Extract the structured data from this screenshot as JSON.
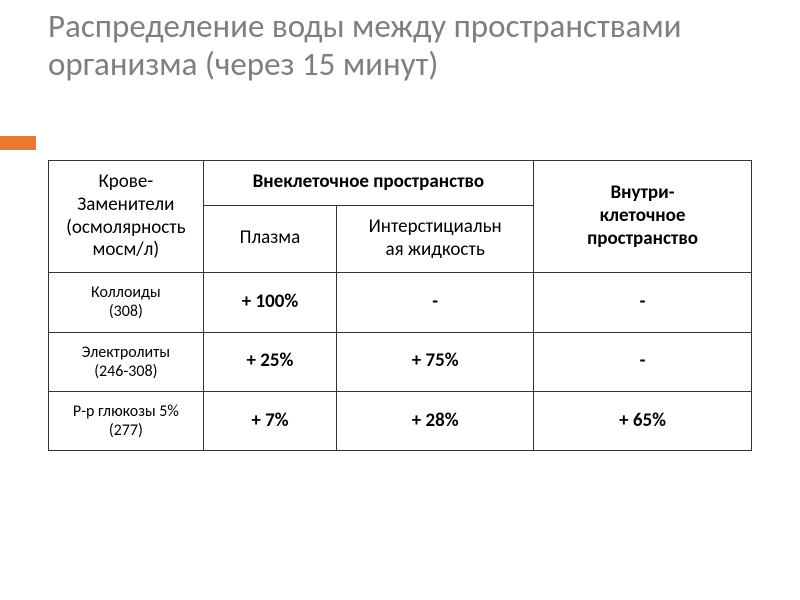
{
  "title": {
    "text": "Распределение воды между пространствами\nорганизма (через 15 минут)",
    "color": "#7f7f7f",
    "fontsize": 33
  },
  "accent": {
    "color": "#e8792f"
  },
  "table": {
    "type": "table",
    "border_color": "#333333",
    "background_color": "#ffffff",
    "header_fontsize": 19,
    "body_fontsize": 19,
    "row_label_fontsize": 16,
    "columns": [
      {
        "key": "substitute",
        "width_pct": 22
      },
      {
        "key": "plasma",
        "width_pct": 19
      },
      {
        "key": "interstitial",
        "width_pct": 28
      },
      {
        "key": "intracellular",
        "width_pct": 31
      }
    ],
    "headers": {
      "substitute": "Крове-\nЗаменители\n(осмолярность\nмосм/л)",
      "extracellular_group": "Внеклеточное  пространство",
      "plasma": "Плазма",
      "interstitial": "Интерстициальн\nая жидкость",
      "intracellular": "Внутри-\nклеточное\nпространство"
    },
    "rows": [
      {
        "label": "Коллоиды\n(308)",
        "plasma": "+ 100%",
        "interstitial": "-",
        "intracellular": "-"
      },
      {
        "label": "Электролиты\n(246-308)",
        "plasma": "+ 25%",
        "interstitial": "+ 75%",
        "intracellular": "-"
      },
      {
        "label": "Р-р глюкозы 5%\n(277)",
        "plasma": "+ 7%",
        "interstitial": "+ 28%",
        "intracellular": "+ 65%"
      }
    ]
  }
}
